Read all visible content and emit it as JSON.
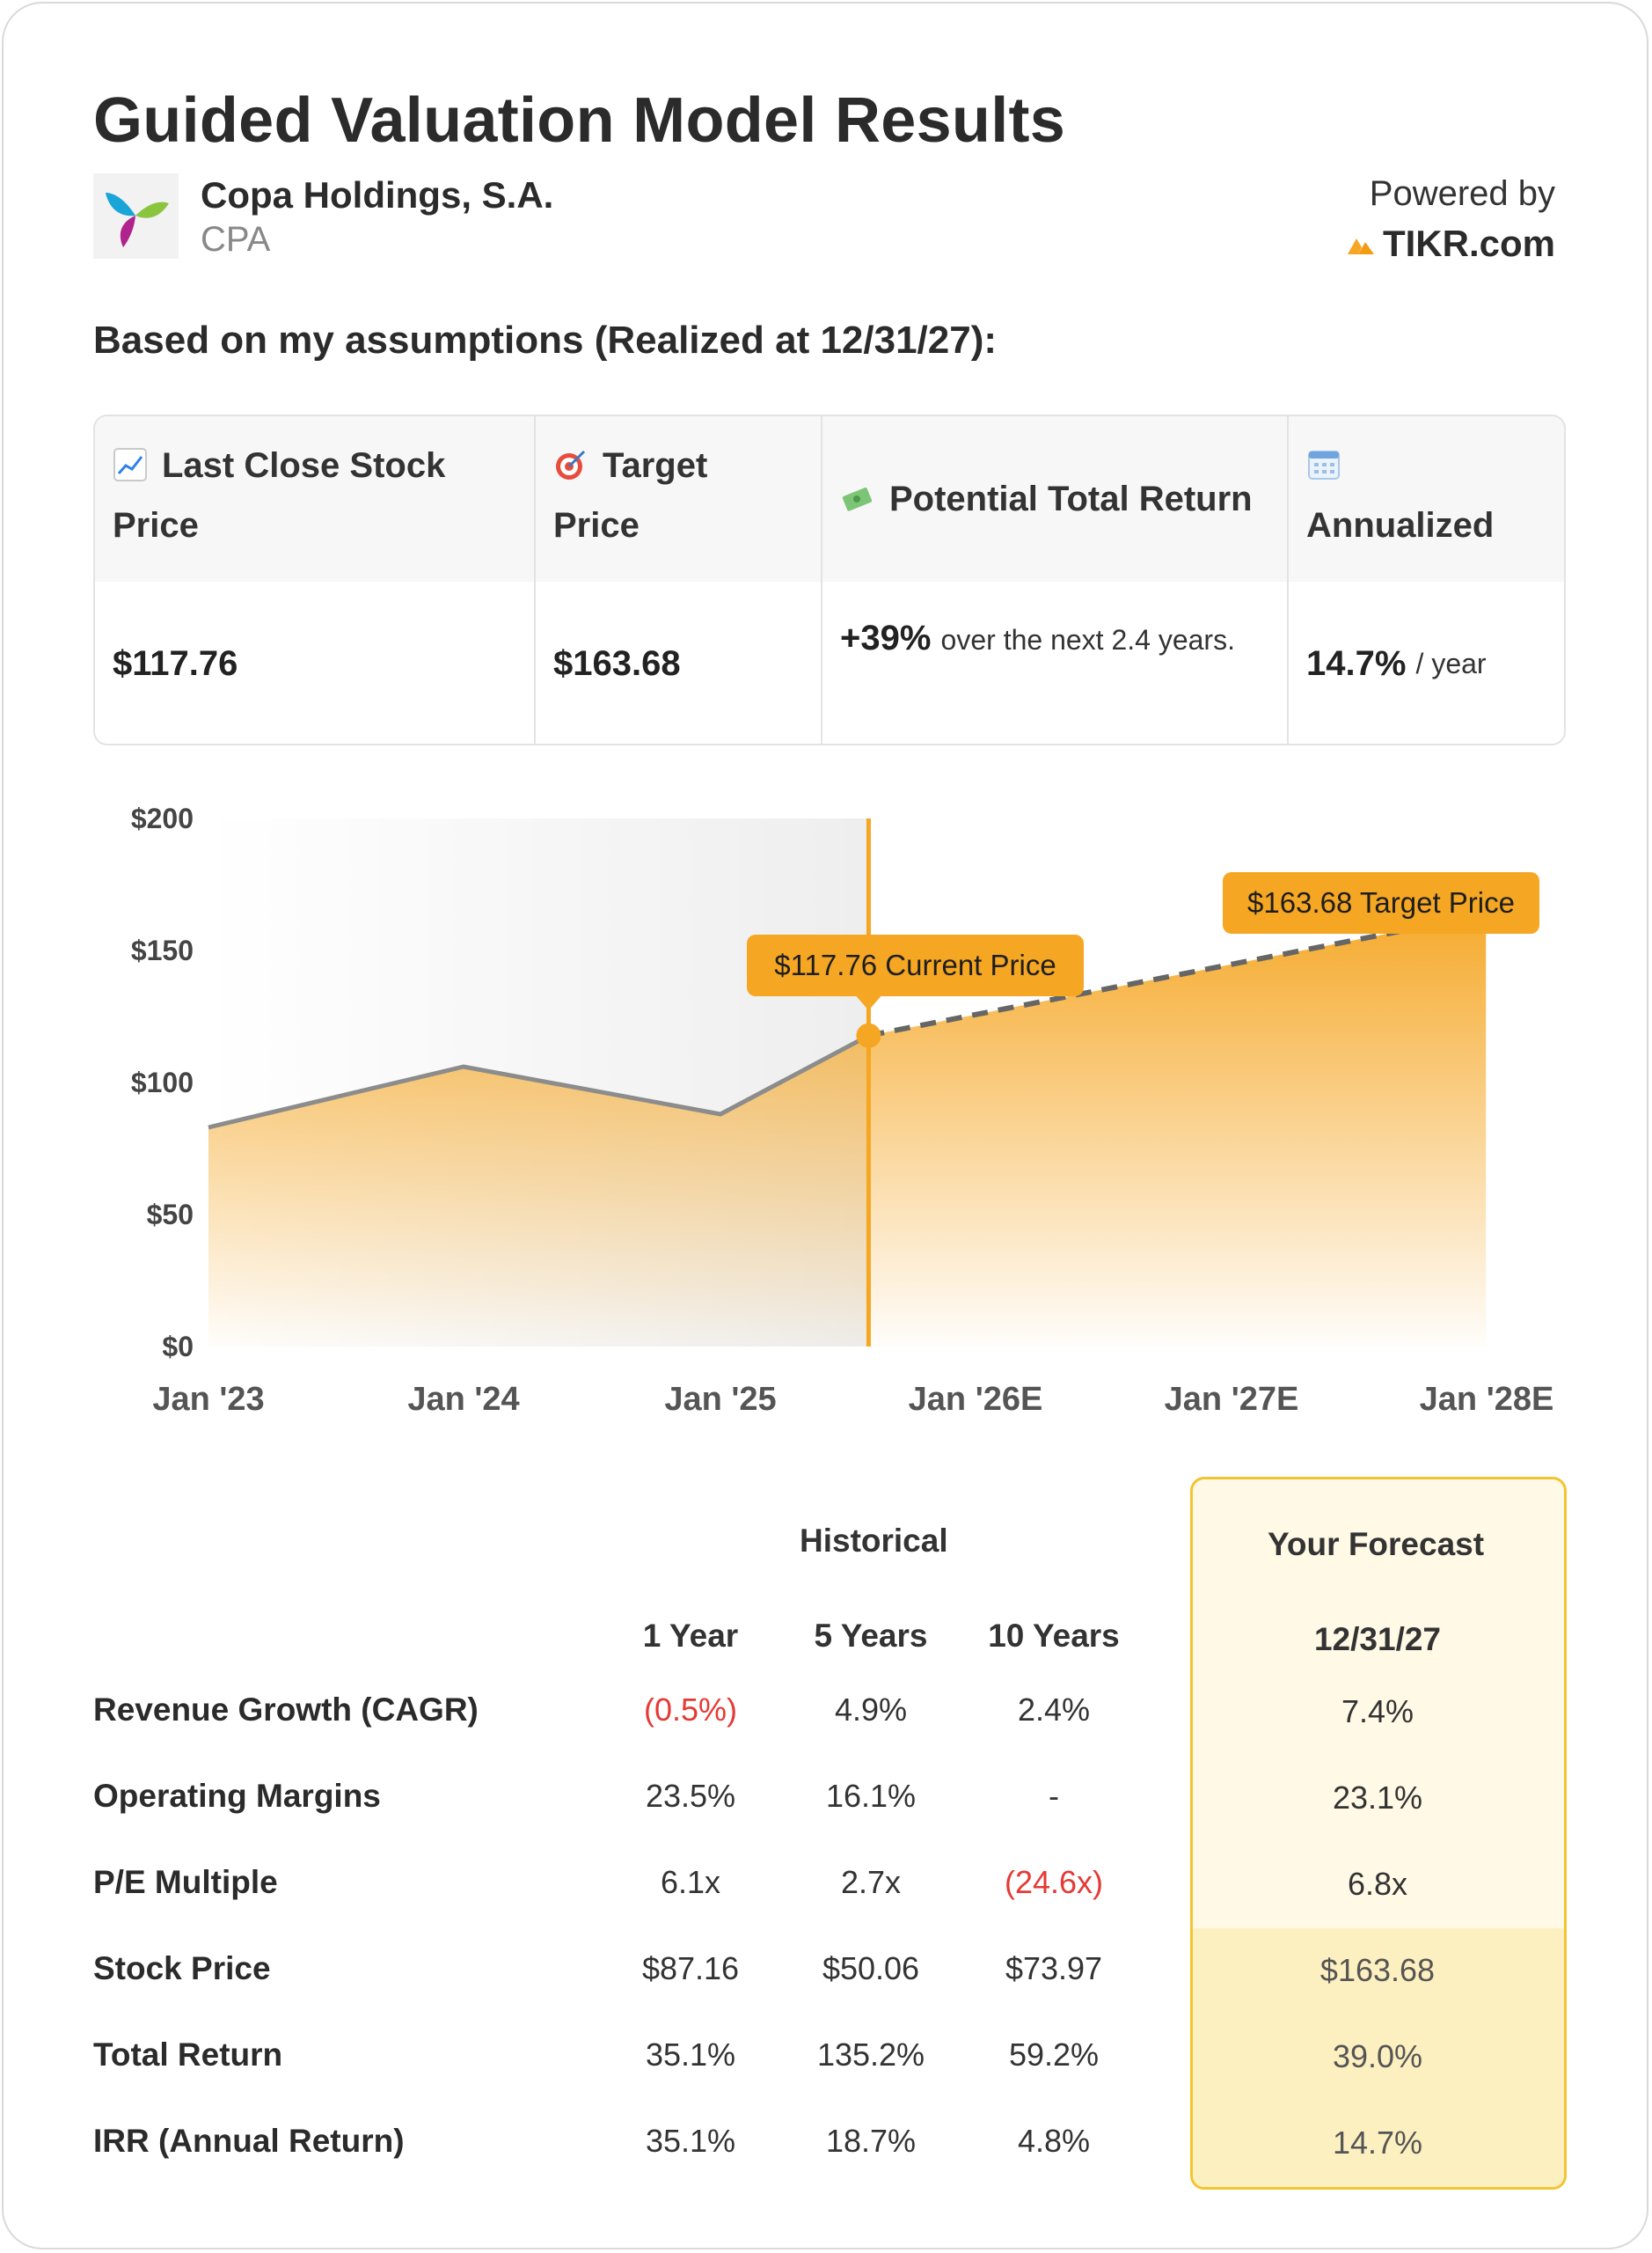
{
  "title": "Guided Valuation Model Results",
  "company": {
    "name": "Copa Holdings, S.A.",
    "ticker": "CPA",
    "logo_icon": "copa-logo-icon"
  },
  "powered_by": {
    "label": "Powered by",
    "brand": "TIKR.com",
    "brand_icon": "tikr-logo-icon"
  },
  "assumptions_heading": "Based on my assumptions (Realized at 12/31/27):",
  "summary": {
    "headers": [
      {
        "icon": "chart-up-icon",
        "label": "Last Close Stock Price"
      },
      {
        "icon": "target-icon",
        "label": "Target Price"
      },
      {
        "icon": "money-icon",
        "label": "Potential Total Return"
      },
      {
        "icon": "calendar-icon",
        "label": "Annualized"
      }
    ],
    "last_close": "$117.76",
    "target_price": "$163.68",
    "total_return_value": "+39%",
    "total_return_text": "over the next 2.4 years.",
    "annualized_value": "14.7%",
    "annualized_unit": "/ year"
  },
  "chart_data": {
    "type": "area",
    "title": "",
    "xlabel": "",
    "ylabel": "",
    "ylim": [
      0,
      200
    ],
    "y_ticks": [
      "$0",
      "$50",
      "$100",
      "$150",
      "$200"
    ],
    "x_ticks": [
      "Jan '23",
      "Jan '24",
      "Jan '25",
      "Jan '26E",
      "Jan '27E",
      "Jan '28E"
    ],
    "series": [
      {
        "name": "",
        "x": [
          "2023-01-01",
          "2024-01-01",
          "2025-01-01",
          "2025-08-01"
        ],
        "values": [
          83,
          106,
          88,
          117.76
        ],
        "style": "solid"
      },
      {
        "name": "",
        "x": [
          "2025-08-01",
          "2027-12-31"
        ],
        "values": [
          117.76,
          163.68
        ],
        "style": "dashed"
      }
    ],
    "current_date": "2025-08-01",
    "annotations": [
      {
        "label": "$117.76 Current Price",
        "x": "2025-08-01",
        "value": 117.76
      },
      {
        "label": "$163.68 Target Price",
        "x": "2027-12-31",
        "value": 163.68
      }
    ],
    "colors": {
      "accent": "#f5a623",
      "line": "#8c8c8c",
      "dash": "#666666",
      "shade": "#f0f0f0"
    }
  },
  "metrics": {
    "historical_label": "Historical",
    "forecast_label": "Your Forecast",
    "periods": [
      "1 Year",
      "5 Years",
      "10 Years"
    ],
    "forecast_period": "12/31/27",
    "rows": [
      {
        "label": "Revenue Growth (CAGR)",
        "values": [
          "(0.5%)",
          "4.9%",
          "2.4%"
        ],
        "forecast": "7.4%"
      },
      {
        "label": "Operating Margins",
        "values": [
          "23.5%",
          "16.1%",
          "-"
        ],
        "forecast": "23.1%"
      },
      {
        "label": "P/E Multiple",
        "values": [
          "6.1x",
          "2.7x",
          "(24.6x)"
        ],
        "forecast": "6.8x"
      },
      {
        "label": "Stock Price",
        "values": [
          "$87.16",
          "$50.06",
          "$73.97"
        ],
        "forecast": "$163.68"
      },
      {
        "label": "Total Return",
        "values": [
          "35.1%",
          "135.2%",
          "59.2%"
        ],
        "forecast": "39.0%"
      },
      {
        "label": "IRR (Annual Return)",
        "values": [
          "35.1%",
          "18.7%",
          "4.8%"
        ],
        "forecast": "14.7%"
      }
    ]
  }
}
